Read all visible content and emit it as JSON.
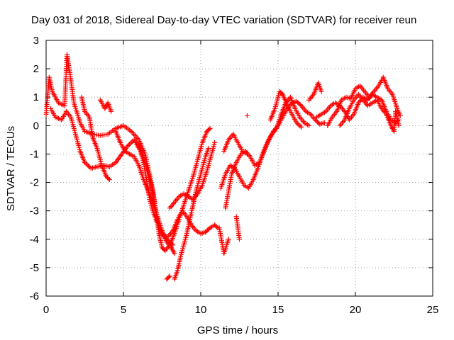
{
  "chart_data": {
    "type": "scatter",
    "title": "Day 031 of 2018, Sidereal Day-to-day VTEC variation (SDTVAR) for receiver reun",
    "xlabel": "GPS time / hours",
    "ylabel": "SDTVAR / TECUs",
    "xlim": [
      0,
      25
    ],
    "ylim": [
      -6,
      3
    ],
    "xticks": [
      0,
      5,
      10,
      15,
      20,
      25
    ],
    "yticks": [
      -6,
      -5,
      -4,
      -3,
      -2,
      -1,
      0,
      1,
      2,
      3
    ],
    "grid": true,
    "marker": "+",
    "marker_color": "#ff0000",
    "series": [
      {
        "name": "SDTVAR",
        "tracks": [
          [
            [
              0.0,
              0.4
            ],
            [
              0.2,
              1.7
            ],
            [
              0.4,
              1.2
            ],
            [
              0.8,
              0.8
            ],
            [
              1.2,
              0.7
            ],
            [
              1.35,
              2.5
            ],
            [
              1.55,
              1.8
            ],
            [
              1.8,
              0.8
            ],
            [
              2.2,
              0.1
            ],
            [
              2.5,
              -0.2
            ],
            [
              3.0,
              -0.3
            ],
            [
              3.5,
              -0.35
            ],
            [
              4.0,
              -0.3
            ],
            [
              4.5,
              -0.1
            ],
            [
              5.0,
              0.0
            ],
            [
              5.5,
              -0.2
            ],
            [
              6.0,
              -0.5
            ],
            [
              6.4,
              -1.0
            ],
            [
              6.8,
              -2.0
            ],
            [
              7.1,
              -3.0
            ],
            [
              7.3,
              -3.8
            ],
            [
              7.5,
              -4.3
            ],
            [
              7.7,
              -4.4
            ],
            [
              8.0,
              -4.2
            ],
            [
              8.3,
              -3.8
            ],
            [
              8.6,
              -3.3
            ],
            [
              8.9,
              -2.8
            ],
            [
              9.2,
              -2.3
            ],
            [
              9.5,
              -1.8
            ],
            [
              9.8,
              -1.2
            ],
            [
              10.1,
              -0.6
            ],
            [
              10.4,
              -0.2
            ],
            [
              10.6,
              -0.1
            ]
          ],
          [
            [
              0.3,
              0.6
            ],
            [
              0.6,
              0.3
            ],
            [
              1.0,
              0.2
            ],
            [
              1.3,
              0.5
            ],
            [
              1.6,
              0.3
            ],
            [
              1.9,
              -0.3
            ],
            [
              2.2,
              -0.9
            ],
            [
              2.5,
              -1.3
            ],
            [
              2.9,
              -1.5
            ],
            [
              3.3,
              -1.45
            ],
            [
              3.7,
              -1.4
            ],
            [
              4.1,
              -1.45
            ],
            [
              4.5,
              -1.3
            ],
            [
              4.9,
              -1.0
            ],
            [
              5.3,
              -0.7
            ],
            [
              5.7,
              -0.5
            ],
            [
              6.1,
              -0.8
            ],
            [
              6.5,
              -1.5
            ],
            [
              6.9,
              -2.3
            ],
            [
              7.1,
              -3.0
            ],
            [
              7.3,
              -3.6
            ],
            [
              7.6,
              -3.9
            ],
            [
              7.9,
              -3.9
            ],
            [
              8.2,
              -3.7
            ],
            [
              8.5,
              -3.3
            ],
            [
              8.8,
              -3.0
            ],
            [
              9.1,
              -3.2
            ],
            [
              9.4,
              -3.5
            ],
            [
              9.7,
              -3.7
            ],
            [
              10.0,
              -3.8
            ],
            [
              10.3,
              -3.75
            ],
            [
              10.6,
              -3.6
            ],
            [
              10.9,
              -3.5
            ],
            [
              11.1,
              -3.6
            ]
          ],
          [
            [
              2.3,
              1.0
            ],
            [
              2.5,
              0.5
            ],
            [
              2.8,
              0.3
            ],
            [
              3.0,
              -0.4
            ],
            [
              3.3,
              -0.8
            ],
            [
              3.6,
              -1.4
            ],
            [
              3.9,
              -1.8
            ],
            [
              4.1,
              -1.9
            ]
          ],
          [
            [
              3.5,
              0.9
            ],
            [
              3.8,
              0.6
            ],
            [
              4.0,
              0.8
            ],
            [
              4.2,
              0.5
            ]
          ],
          [
            [
              4.5,
              -0.2
            ],
            [
              4.8,
              -0.6
            ],
            [
              5.1,
              -0.9
            ],
            [
              5.4,
              -1.0
            ],
            [
              5.7,
              -1.1
            ],
            [
              6.0,
              -1.4
            ],
            [
              6.3,
              -1.9
            ],
            [
              6.6,
              -2.3
            ],
            [
              6.9,
              -2.7
            ],
            [
              7.2,
              -3.2
            ],
            [
              7.5,
              -3.7
            ],
            [
              7.8,
              -4.1
            ],
            [
              8.1,
              -4.3
            ],
            [
              8.3,
              -4.5
            ]
          ],
          [
            [
              5.8,
              -0.6
            ],
            [
              6.1,
              -0.9
            ],
            [
              6.3,
              -1.3
            ],
            [
              6.5,
              -1.9
            ],
            [
              6.7,
              -2.6
            ],
            [
              6.9,
              -3.0
            ],
            [
              7.1,
              -3.3
            ],
            [
              7.4,
              -3.7
            ],
            [
              7.8,
              -4.0
            ],
            [
              8.2,
              -4.2
            ]
          ],
          [
            [
              8.3,
              -5.4
            ],
            [
              8.5,
              -5.1
            ],
            [
              8.7,
              -4.6
            ],
            [
              8.9,
              -4.2
            ],
            [
              9.1,
              -3.8
            ],
            [
              9.3,
              -3.3
            ],
            [
              9.5,
              -2.8
            ],
            [
              9.7,
              -2.3
            ],
            [
              9.9,
              -1.9
            ],
            [
              10.1,
              -1.5
            ],
            [
              10.3,
              -1.1
            ],
            [
              10.5,
              -0.8
            ]
          ],
          [
            [
              8.0,
              -2.9
            ],
            [
              8.3,
              -2.7
            ],
            [
              8.6,
              -2.5
            ],
            [
              8.9,
              -2.4
            ],
            [
              9.2,
              -2.5
            ],
            [
              9.5,
              -2.6
            ],
            [
              9.8,
              -2.4
            ],
            [
              10.1,
              -2.1
            ],
            [
              10.4,
              -1.6
            ],
            [
              10.7,
              -1.0
            ],
            [
              10.9,
              -0.6
            ]
          ],
          [
            [
              7.8,
              -5.4
            ],
            [
              8.0,
              -5.3
            ]
          ],
          [
            [
              11.2,
              -3.6
            ],
            [
              11.5,
              -4.5
            ],
            [
              11.8,
              -4.0
            ]
          ],
          [
            [
              11.6,
              -2.9
            ],
            [
              11.8,
              -2.3
            ],
            [
              12.0,
              -1.7
            ],
            [
              12.3,
              -1.3
            ],
            [
              12.6,
              -1.0
            ],
            [
              12.9,
              -0.9
            ],
            [
              13.2,
              -1.1
            ],
            [
              13.5,
              -1.4
            ],
            [
              13.8,
              -1.3
            ],
            [
              14.1,
              -0.9
            ],
            [
              14.4,
              -0.5
            ],
            [
              14.7,
              -0.2
            ],
            [
              15.0,
              0.0
            ],
            [
              15.3,
              0.3
            ],
            [
              15.6,
              0.6
            ],
            [
              15.9,
              0.8
            ],
            [
              16.2,
              0.85
            ],
            [
              16.5,
              0.7
            ],
            [
              16.8,
              0.5
            ],
            [
              17.1,
              0.4
            ],
            [
              17.4,
              0.2
            ],
            [
              17.7,
              0.05
            ],
            [
              18.0,
              0.1
            ]
          ],
          [
            [
              11.3,
              -2.2
            ],
            [
              11.6,
              -1.7
            ],
            [
              11.9,
              -1.4
            ],
            [
              12.2,
              -1.5
            ],
            [
              12.5,
              -1.8
            ],
            [
              12.8,
              -2.1
            ],
            [
              13.1,
              -2.2
            ],
            [
              13.4,
              -1.9
            ],
            [
              13.7,
              -1.5
            ],
            [
              14.0,
              -1.0
            ],
            [
              14.3,
              -0.6
            ],
            [
              14.6,
              -0.3
            ],
            [
              14.9,
              -0.1
            ],
            [
              15.2,
              0.4
            ],
            [
              15.5,
              0.8
            ],
            [
              15.8,
              1.0
            ],
            [
              16.1,
              0.6
            ],
            [
              16.4,
              0.3
            ],
            [
              16.7,
              0.1
            ],
            [
              17.0,
              0.0
            ]
          ],
          [
            [
              11.5,
              -0.9
            ],
            [
              11.8,
              -0.5
            ],
            [
              12.1,
              -0.3
            ],
            [
              12.4,
              -0.6
            ],
            [
              12.7,
              -0.9
            ],
            [
              13.0,
              -1.0
            ]
          ],
          [
            [
              12.3,
              -3.2
            ],
            [
              12.5,
              -4.0
            ]
          ],
          [
            [
              13.0,
              0.35
            ]
          ],
          [
            [
              14.5,
              0.2
            ],
            [
              14.8,
              0.6
            ],
            [
              15.1,
              1.2
            ],
            [
              15.3,
              1.1
            ],
            [
              15.6,
              0.7
            ],
            [
              15.9,
              0.4
            ],
            [
              16.2,
              0.1
            ],
            [
              16.5,
              -0.05
            ]
          ],
          [
            [
              17.0,
              0.9
            ],
            [
              17.3,
              1.1
            ],
            [
              17.6,
              1.5
            ],
            [
              17.8,
              1.2
            ]
          ],
          [
            [
              17.5,
              0.3
            ],
            [
              17.8,
              0.4
            ],
            [
              18.1,
              0.5
            ],
            [
              18.4,
              0.7
            ],
            [
              18.7,
              0.8
            ],
            [
              19.0,
              0.7
            ],
            [
              19.3,
              0.5
            ],
            [
              19.6,
              0.2
            ],
            [
              19.9,
              0.4
            ],
            [
              20.2,
              0.8
            ],
            [
              20.5,
              1.0
            ],
            [
              20.8,
              0.9
            ],
            [
              21.1,
              1.1
            ],
            [
              21.4,
              1.0
            ],
            [
              21.7,
              0.9
            ],
            [
              22.0,
              0.5
            ],
            [
              22.3,
              0.2
            ],
            [
              22.6,
              0.1
            ],
            [
              22.8,
              0.2
            ]
          ],
          [
            [
              18.2,
              0.0
            ],
            [
              18.5,
              0.3
            ],
            [
              18.8,
              0.5
            ],
            [
              19.1,
              0.9
            ],
            [
              19.4,
              1.0
            ],
            [
              19.7,
              0.95
            ],
            [
              20.0,
              1.3
            ],
            [
              20.3,
              1.4
            ],
            [
              20.6,
              1.2
            ],
            [
              20.9,
              1.0
            ],
            [
              21.2,
              1.2
            ],
            [
              21.5,
              1.4
            ],
            [
              21.8,
              1.7
            ],
            [
              22.1,
              1.3
            ],
            [
              22.4,
              1.1
            ],
            [
              22.7,
              0.6
            ],
            [
              22.9,
              0.35
            ]
          ],
          [
            [
              19.0,
              0.0
            ],
            [
              19.3,
              0.2
            ],
            [
              19.6,
              0.6
            ],
            [
              19.9,
              0.9
            ],
            [
              20.2,
              1.1
            ],
            [
              20.5,
              0.9
            ],
            [
              20.8,
              0.7
            ],
            [
              21.1,
              0.8
            ],
            [
              21.4,
              0.9
            ],
            [
              21.7,
              0.6
            ],
            [
              22.0,
              0.4
            ],
            [
              22.3,
              0.0
            ],
            [
              22.5,
              -0.2
            ],
            [
              22.6,
              0.5
            ],
            [
              22.8,
              0.0
            ]
          ]
        ]
      }
    ]
  }
}
